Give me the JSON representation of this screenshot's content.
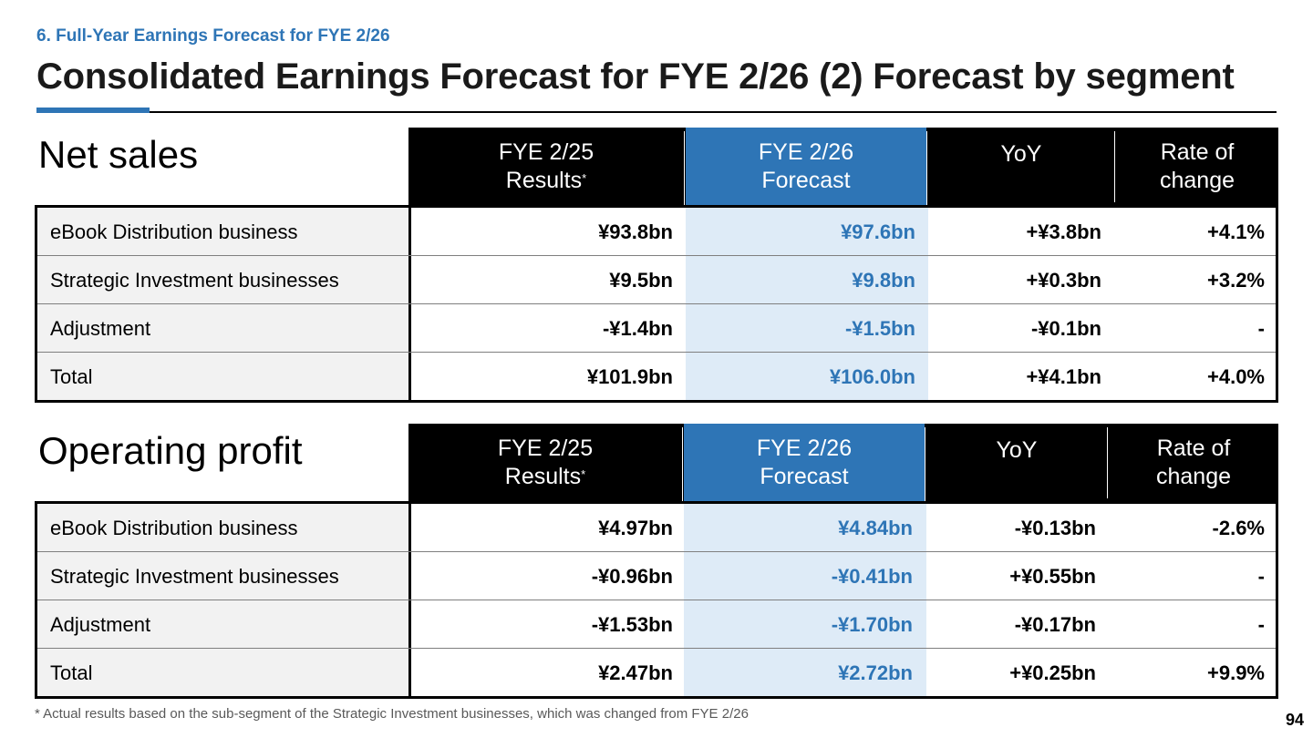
{
  "section_label": "6. Full-Year Earnings Forecast for FYE 2/26",
  "page_title": "Consolidated Earnings Forecast for FYE 2/26 (2) Forecast by segment",
  "colors": {
    "accent": "#2E75B6",
    "forecast_bg": "#DEEBF7",
    "header_bg": "#000000",
    "name_bg": "#F2F2F2"
  },
  "net_sales": {
    "title": "Net sales",
    "headers": {
      "results_l1": "FYE 2/25",
      "results_l2": "Results",
      "results_mark": "*",
      "forecast_l1": "FYE 2/26",
      "forecast_l2": "Forecast",
      "yoy": "YoY",
      "rate_l1": "Rate of",
      "rate_l2": "change"
    },
    "rows": [
      {
        "name": "eBook Distribution business",
        "results": "¥93.8bn",
        "forecast": "¥97.6bn",
        "yoy": "+¥3.8bn",
        "rate": "+4.1%"
      },
      {
        "name": "Strategic Investment businesses",
        "results": "¥9.5bn",
        "forecast": "¥9.8bn",
        "yoy": "+¥0.3bn",
        "rate": "+3.2%"
      },
      {
        "name": "Adjustment",
        "results": "-¥1.4bn",
        "forecast": "-¥1.5bn",
        "yoy": "-¥0.1bn",
        "rate": "-"
      },
      {
        "name": "Total",
        "results": "¥101.9bn",
        "forecast": "¥106.0bn",
        "yoy": "+¥4.1bn",
        "rate": "+4.0%"
      }
    ]
  },
  "operating_profit": {
    "title": "Operating profit",
    "headers": {
      "results_l1": "FYE 2/25",
      "results_l2": "Results",
      "results_mark": "*",
      "forecast_l1": "FYE 2/26",
      "forecast_l2": "Forecast",
      "yoy": "YoY",
      "rate_l1": "Rate of",
      "rate_l2": "change"
    },
    "rows": [
      {
        "name": "eBook Distribution business",
        "results": "¥4.97bn",
        "forecast": "¥4.84bn",
        "yoy": "-¥0.13bn",
        "rate": "-2.6%"
      },
      {
        "name": "Strategic Investment businesses",
        "results": "-¥0.96bn",
        "forecast": "-¥0.41bn",
        "yoy": "+¥0.55bn",
        "rate": "-"
      },
      {
        "name": "Adjustment",
        "results": "-¥1.53bn",
        "forecast": "-¥1.70bn",
        "yoy": "-¥0.17bn",
        "rate": "-"
      },
      {
        "name": "Total",
        "results": "¥2.47bn",
        "forecast": "¥2.72bn",
        "yoy": "+¥0.25bn",
        "rate": "+9.9%"
      }
    ]
  },
  "footnote": "* Actual results based on the sub-segment of the Strategic Investment businesses, which was changed from FYE 2/26",
  "page_number": "94"
}
